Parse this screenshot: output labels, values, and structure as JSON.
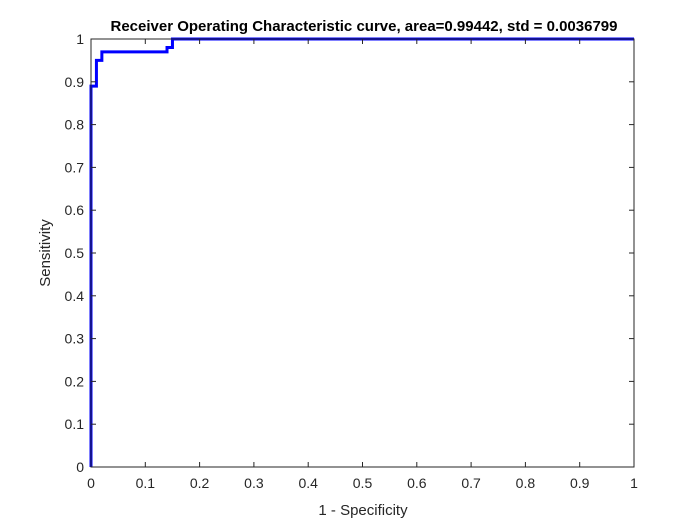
{
  "chart_data": {
    "type": "line",
    "title": "Receiver Operating Characteristic curve, area=0.99442, std = 0.0036799",
    "xlabel": "1 - Specificity",
    "ylabel": "Sensitivity",
    "xlim": [
      0,
      1
    ],
    "ylim": [
      0,
      1
    ],
    "xticks": [
      "0",
      "0.1",
      "0.2",
      "0.3",
      "0.4",
      "0.5",
      "0.6",
      "0.7",
      "0.8",
      "0.9",
      "1"
    ],
    "yticks": [
      "0",
      "0.1",
      "0.2",
      "0.3",
      "0.4",
      "0.5",
      "0.6",
      "0.7",
      "0.8",
      "0.9",
      "1"
    ],
    "grid": false,
    "series": [
      {
        "color": "#0000ff",
        "x": [
          0,
          0,
          0.01,
          0.01,
          0.02,
          0.02,
          0.14,
          0.14,
          0.15,
          0.15,
          1
        ],
        "y": [
          0,
          0.89,
          0.89,
          0.95,
          0.95,
          0.97,
          0.97,
          0.98,
          0.98,
          1,
          1
        ]
      }
    ]
  }
}
